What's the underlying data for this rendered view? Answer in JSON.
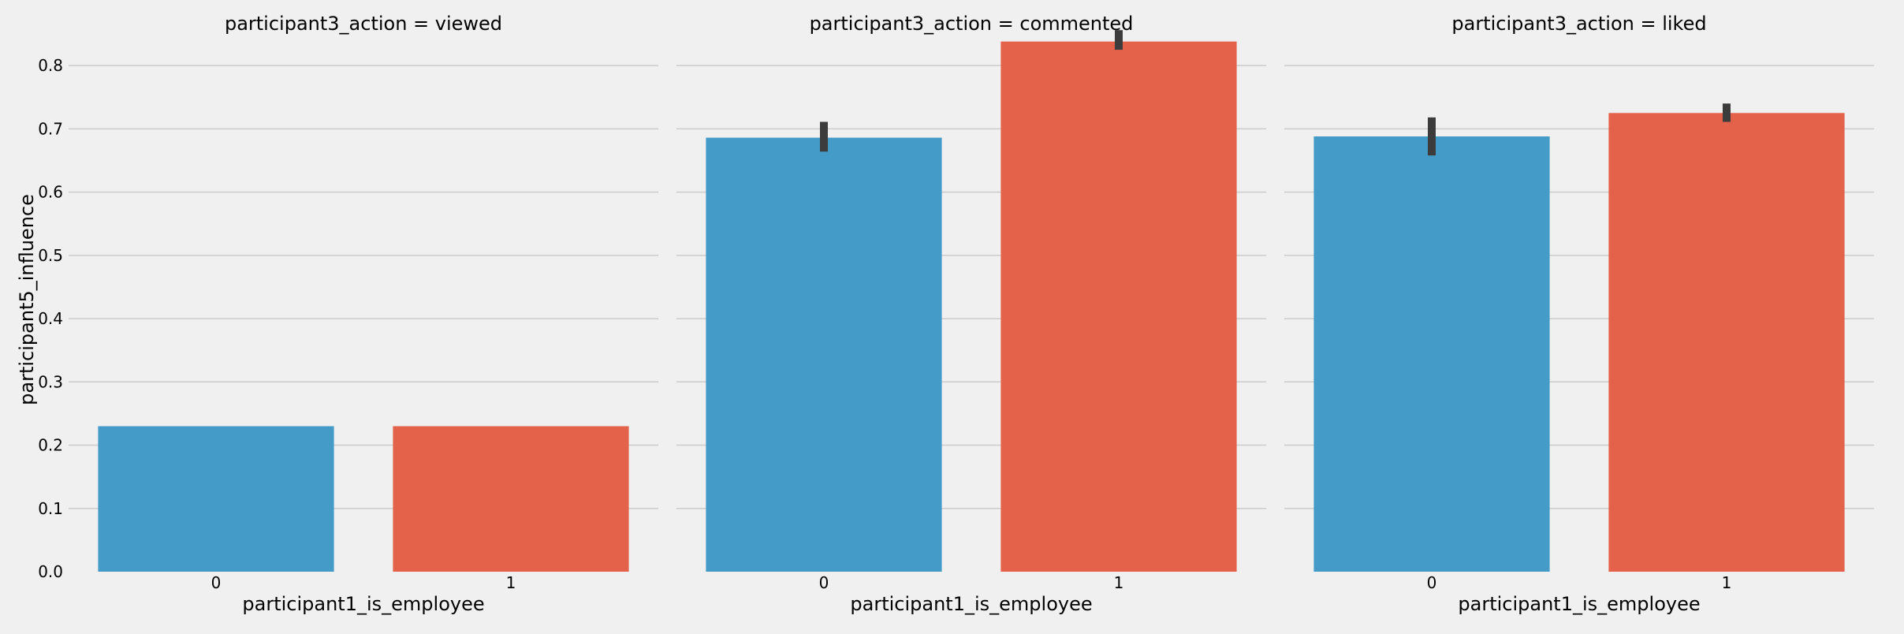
{
  "colors": {
    "series0": "#459bc8",
    "series1": "#e4614a",
    "errorbar": "#3c3c3c",
    "grid": "#cbcbcb",
    "background": "#f0f0f0"
  },
  "chart_data": [
    {
      "type": "bar",
      "title": "participant3_action = viewed",
      "xlabel": "participant1_is_employee",
      "ylabel": "participant5_influence",
      "categories": [
        "0",
        "1"
      ],
      "values": [
        0.23,
        0.23
      ],
      "error_low": [
        0.23,
        0.23
      ],
      "error_high": [
        0.23,
        0.23
      ],
      "ylim": [
        0,
        0.86
      ],
      "yticks": [
        "0.0",
        "0.1",
        "0.2",
        "0.3",
        "0.4",
        "0.5",
        "0.6",
        "0.7",
        "0.8"
      ],
      "grid": true
    },
    {
      "type": "bar",
      "title": "participant3_action = commented",
      "xlabel": "participant1_is_employee",
      "ylabel": "",
      "categories": [
        "0",
        "1"
      ],
      "values": [
        0.686,
        0.838
      ],
      "error_low": [
        0.664,
        0.825
      ],
      "error_high": [
        0.711,
        0.856
      ],
      "ylim": [
        0,
        0.86
      ],
      "yticks": [
        "0.0",
        "0.1",
        "0.2",
        "0.3",
        "0.4",
        "0.5",
        "0.6",
        "0.7",
        "0.8"
      ],
      "grid": true
    },
    {
      "type": "bar",
      "title": "participant3_action = liked",
      "xlabel": "participant1_is_employee",
      "ylabel": "",
      "categories": [
        "0",
        "1"
      ],
      "values": [
        0.688,
        0.725
      ],
      "error_low": [
        0.658,
        0.711
      ],
      "error_high": [
        0.718,
        0.74
      ],
      "ylim": [
        0,
        0.86
      ],
      "yticks": [
        "0.0",
        "0.1",
        "0.2",
        "0.3",
        "0.4",
        "0.5",
        "0.6",
        "0.7",
        "0.8"
      ],
      "grid": true
    }
  ]
}
